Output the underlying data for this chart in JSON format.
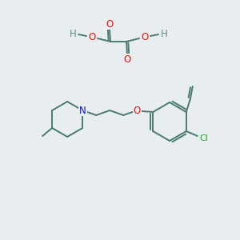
{
  "bg_color": "#e8edf0",
  "bond_color": "#4a7a6e",
  "bond_width": 1.4,
  "atom_colors": {
    "O": "#ee1111",
    "N": "#1111ee",
    "Cl": "#22aa22",
    "H": "#6a8a80",
    "C": "#4a7a6e"
  }
}
